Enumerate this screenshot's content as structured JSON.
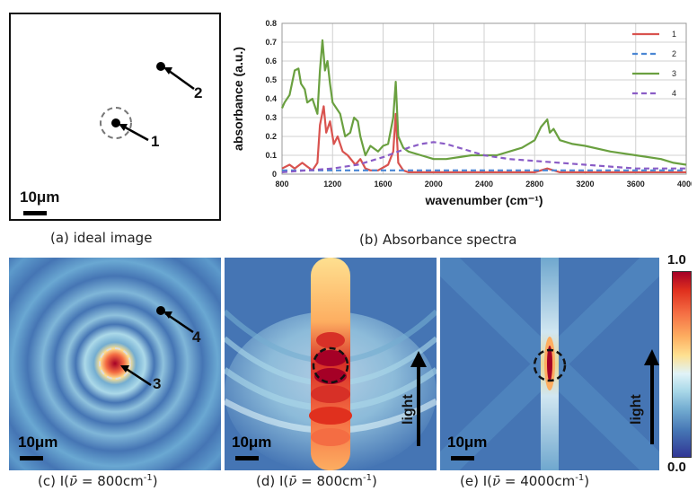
{
  "panel_a": {
    "caption": "(a) ideal image",
    "markers": [
      "1",
      "2"
    ],
    "scale": "10μm"
  },
  "panel_b": {
    "caption": "(b) Absorbance spectra"
  },
  "panel_c": {
    "caption_prefix": "(c) I(",
    "caption_nu": "ν̄",
    "caption_suffix": " = 800cm",
    "caption_sup": "-1",
    "caption_close": ")",
    "markers": [
      "3",
      "4"
    ],
    "scale": "10μm"
  },
  "panel_d": {
    "caption_prefix": "(d) I(",
    "caption_nu": "ν̄",
    "caption_suffix": " = 800cm",
    "caption_sup": "-1",
    "caption_close": ")",
    "scale": "10μm",
    "arrow_label": "light"
  },
  "panel_e": {
    "caption_prefix": "(e) I(",
    "caption_nu": "ν̄",
    "caption_suffix": " = 4000cm",
    "caption_sup": "-1",
    "caption_close": ")",
    "scale": "10μm",
    "arrow_label": "light"
  },
  "colorbar": {
    "max_label": "1.0",
    "min_label": "0.0"
  },
  "chart_data": {
    "type": "line",
    "title": "",
    "xlabel": "wavenumber (cm⁻¹)",
    "ylabel": "absorbance (a.u.)",
    "xlim": [
      800,
      4000
    ],
    "ylim": [
      0,
      0.8
    ],
    "x_ticks": [
      "800",
      "1200",
      "1600",
      "2000",
      "2400",
      "2800",
      "3200",
      "3600",
      "4000"
    ],
    "y_ticks": [
      "0",
      "0.1",
      "0.2",
      "0.3",
      "0.4",
      "0.5",
      "0.6",
      "0.7",
      "0.8"
    ],
    "grid": true,
    "legend_position": "top-right",
    "series": [
      {
        "name": "1",
        "color": "#d9534f",
        "dash": "solid",
        "x": [
          800,
          860,
          900,
          960,
          1000,
          1040,
          1080,
          1100,
          1130,
          1150,
          1180,
          1210,
          1240,
          1280,
          1320,
          1380,
          1420,
          1460,
          1500,
          1560,
          1640,
          1680,
          1700,
          1720,
          1760,
          1800,
          2000,
          2400,
          2800,
          2900,
          2950,
          3000,
          3200,
          3600,
          4000
        ],
        "y": [
          0.03,
          0.05,
          0.03,
          0.06,
          0.04,
          0.02,
          0.06,
          0.26,
          0.36,
          0.22,
          0.28,
          0.16,
          0.2,
          0.12,
          0.1,
          0.05,
          0.08,
          0.03,
          0.02,
          0.02,
          0.05,
          0.12,
          0.32,
          0.06,
          0.02,
          0.01,
          0.01,
          0.01,
          0.01,
          0.03,
          0.02,
          0.01,
          0.01,
          0.01,
          0.01
        ]
      },
      {
        "name": "2",
        "color": "#4a86d4",
        "dash": "dashed",
        "x": [
          800,
          1200,
          1600,
          2000,
          2400,
          2800,
          3200,
          3600,
          4000
        ],
        "y": [
          0.02,
          0.02,
          0.02,
          0.02,
          0.02,
          0.02,
          0.02,
          0.02,
          0.02
        ]
      },
      {
        "name": "3",
        "color": "#6aa040",
        "dash": "solid",
        "x": [
          800,
          820,
          860,
          900,
          930,
          950,
          980,
          1000,
          1040,
          1080,
          1100,
          1120,
          1140,
          1160,
          1180,
          1200,
          1230,
          1260,
          1300,
          1340,
          1370,
          1400,
          1420,
          1440,
          1460,
          1500,
          1560,
          1600,
          1640,
          1680,
          1700,
          1720,
          1760,
          1800,
          1900,
          2000,
          2100,
          2200,
          2300,
          2400,
          2500,
          2600,
          2700,
          2800,
          2850,
          2900,
          2920,
          2950,
          3000,
          3100,
          3200,
          3400,
          3600,
          3800,
          3900,
          4000
        ],
        "y": [
          0.35,
          0.38,
          0.42,
          0.55,
          0.56,
          0.48,
          0.45,
          0.38,
          0.4,
          0.32,
          0.55,
          0.71,
          0.55,
          0.6,
          0.48,
          0.38,
          0.35,
          0.32,
          0.2,
          0.22,
          0.3,
          0.28,
          0.2,
          0.15,
          0.1,
          0.15,
          0.12,
          0.15,
          0.16,
          0.3,
          0.49,
          0.2,
          0.14,
          0.12,
          0.1,
          0.08,
          0.08,
          0.09,
          0.1,
          0.1,
          0.1,
          0.12,
          0.14,
          0.18,
          0.25,
          0.29,
          0.22,
          0.24,
          0.18,
          0.16,
          0.15,
          0.12,
          0.1,
          0.08,
          0.06,
          0.05
        ]
      },
      {
        "name": "4",
        "color": "#8a5cc6",
        "dash": "dashed",
        "x": [
          800,
          1000,
          1200,
          1400,
          1600,
          1800,
          1900,
          2000,
          2100,
          2200,
          2400,
          2600,
          2800,
          3000,
          3200,
          3400,
          3600,
          3800,
          4000
        ],
        "y": [
          0.01,
          0.02,
          0.03,
          0.05,
          0.09,
          0.14,
          0.16,
          0.17,
          0.16,
          0.14,
          0.1,
          0.08,
          0.07,
          0.06,
          0.05,
          0.04,
          0.03,
          0.03,
          0.03
        ]
      }
    ]
  }
}
